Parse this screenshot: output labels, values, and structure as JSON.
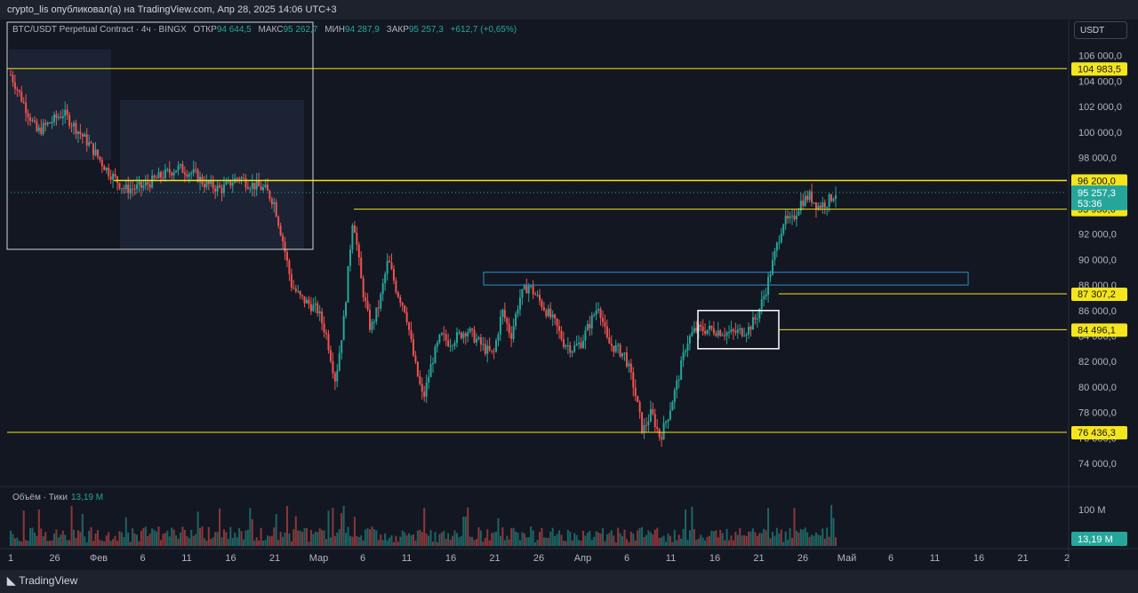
{
  "header": {
    "publish_text": "crypto_lis опубликовал(а) на TradingView.com, Апр 28, 2025 14:06 UTC+3"
  },
  "legend": {
    "symbol": "BTC/USDT Perpetual Contract · 4ч · BINGX",
    "open_label": "ОТКР",
    "open": "94 644,5",
    "high_label": "МАКС",
    "high": "95 262,7",
    "low_label": "МИН",
    "low": "94 287,9",
    "close_label": "ЗАКР",
    "close": "95 257,3",
    "change": "+612,7 (+0,65%)"
  },
  "currency": "USDT",
  "volume": {
    "label": "Объём · Тики",
    "value": "13,19 M",
    "axis_label": "100 M",
    "badge": "13,19 M"
  },
  "footer": {
    "brand": "TradingView"
  },
  "colors": {
    "up": "#26a69a",
    "down": "#ef5350",
    "level": "#f5e51c",
    "zone": "#2f8fc7",
    "bg": "#131722"
  },
  "chart_data": {
    "type": "candlestick",
    "y_ticks": [
      "106 000,0",
      "104 000,0",
      "102 000,0",
      "100 000,0",
      "98 000,0",
      "96 000,0",
      "94 000,0",
      "92 000,0",
      "90 000,0",
      "88 000,0",
      "86 000,0",
      "84 000,0",
      "82 000,0",
      "80 000,0",
      "78 000,0",
      "76 000,0",
      "74 000,0"
    ],
    "y_tick_values": [
      106000,
      104000,
      102000,
      100000,
      98000,
      96000,
      94000,
      92000,
      90000,
      88000,
      86000,
      84000,
      82000,
      80000,
      78000,
      76000,
      74000
    ],
    "ylim": [
      72400,
      107300
    ],
    "x_ticks": [
      "1",
      "26",
      "Фев",
      "6",
      "11",
      "16",
      "21",
      "Мар",
      "6",
      "11",
      "16",
      "21",
      "26",
      "Апр",
      "6",
      "11",
      "16",
      "21",
      "26",
      "Май",
      "6",
      "11",
      "16",
      "21",
      "2"
    ],
    "levels": [
      {
        "label": "104 983,5",
        "value": 104983.5
      },
      {
        "label": "96 200,0",
        "value": 96200
      },
      {
        "label": "93 950,0",
        "value": 93950
      },
      {
        "label": "87 307,2",
        "value": 87307.2
      },
      {
        "label": "84 496,1",
        "value": 84496.1
      },
      {
        "label": "76 436,3",
        "value": 76436.3
      }
    ],
    "last_price": {
      "label": "95 257,3",
      "value": 95257.3,
      "countdown": "53:36"
    },
    "zone": {
      "high": 89000,
      "low": 88000
    },
    "price_path": [
      [
        0,
        104500
      ],
      [
        3,
        100000
      ],
      [
        6,
        101500
      ],
      [
        9,
        99000
      ],
      [
        11,
        97000
      ],
      [
        13,
        95500
      ],
      [
        15,
        95700
      ],
      [
        17,
        96500
      ],
      [
        19,
        97200
      ],
      [
        21,
        96700
      ],
      [
        22,
        96000
      ],
      [
        24,
        95500
      ],
      [
        26,
        96500
      ],
      [
        27,
        96000
      ],
      [
        29,
        95500
      ],
      [
        30,
        94500
      ],
      [
        31,
        91500
      ],
      [
        32,
        88000
      ],
      [
        33,
        87000
      ],
      [
        35,
        86000
      ],
      [
        36,
        84000
      ],
      [
        37,
        80500
      ],
      [
        38,
        85500
      ],
      [
        39,
        93500
      ],
      [
        40,
        88000
      ],
      [
        41,
        84500
      ],
      [
        42,
        86500
      ],
      [
        43,
        90000
      ],
      [
        44,
        87500
      ],
      [
        45,
        86000
      ],
      [
        46,
        82000
      ],
      [
        47,
        79000
      ],
      [
        48,
        82000
      ],
      [
        49,
        84000
      ],
      [
        50,
        83500
      ],
      [
        52,
        84500
      ],
      [
        54,
        83000
      ],
      [
        55,
        82500
      ],
      [
        56,
        86000
      ],
      [
        57,
        84000
      ],
      [
        58,
        87000
      ],
      [
        59,
        88000
      ],
      [
        60,
        87000
      ],
      [
        62,
        85000
      ],
      [
        63,
        83500
      ],
      [
        64,
        83000
      ],
      [
        65,
        83500
      ],
      [
        66,
        85000
      ],
      [
        67,
        86500
      ],
      [
        68,
        83500
      ],
      [
        69,
        83000
      ],
      [
        70,
        82500
      ],
      [
        71,
        80000
      ],
      [
        72,
        76500
      ],
      [
        73,
        78000
      ],
      [
        74,
        76000
      ],
      [
        75,
        78000
      ],
      [
        76,
        80500
      ],
      [
        77,
        83500
      ],
      [
        78,
        84500
      ],
      [
        80,
        84500
      ],
      [
        82,
        84200
      ],
      [
        84,
        84500
      ],
      [
        85,
        85500
      ],
      [
        86,
        87500
      ],
      [
        88,
        93000
      ],
      [
        89,
        93000
      ],
      [
        90,
        94500
      ],
      [
        91,
        95000
      ],
      [
        92,
        94200
      ],
      [
        93,
        94500
      ],
      [
        94,
        95257
      ]
    ],
    "x_index_max": 94,
    "volume_series": {
      "name": "Объём"
    }
  }
}
